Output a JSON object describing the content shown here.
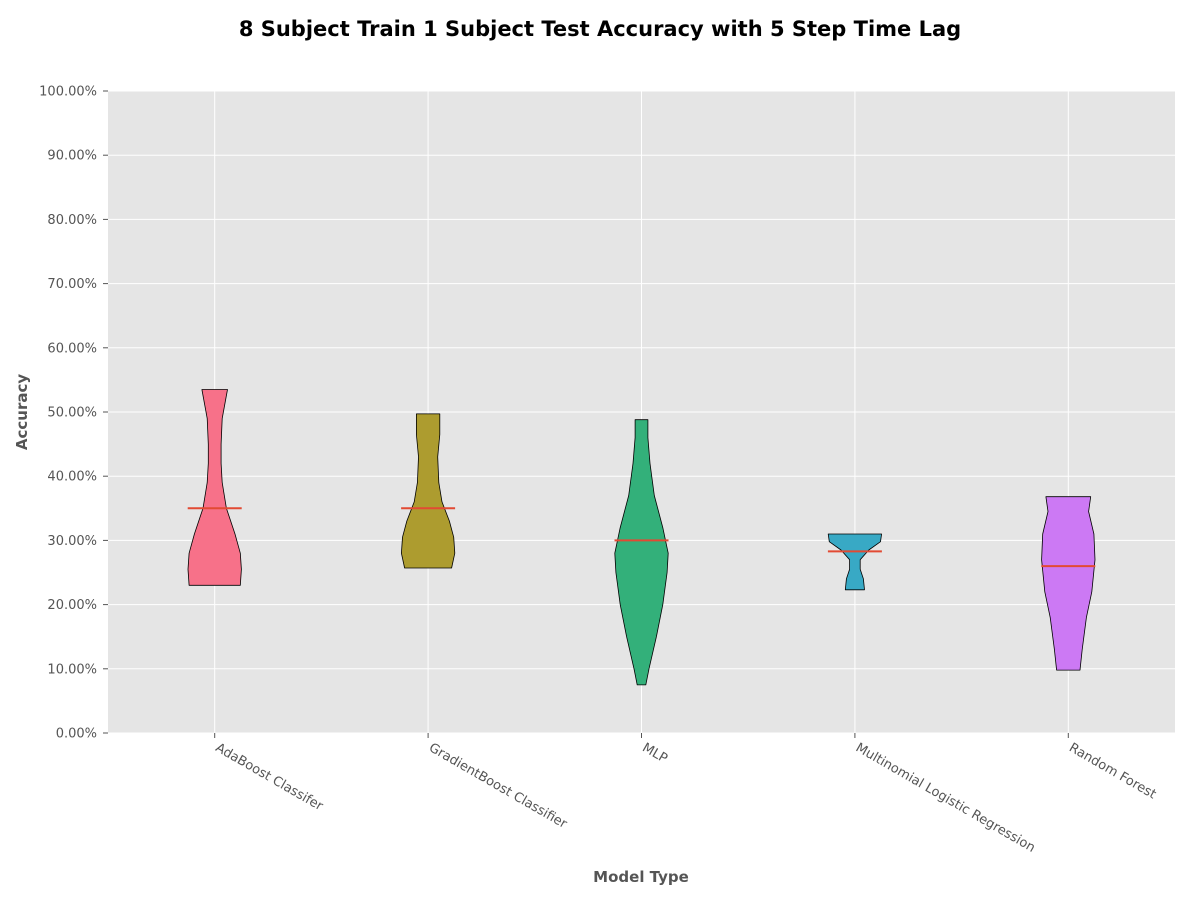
{
  "chart_data": {
    "type": "violin",
    "title": "8 Subject Train 1 Subject Test Accuracy with 5 Step Time Lag",
    "xlabel": "Model Type",
    "ylabel": "Accuracy",
    "ylim": [
      0,
      1
    ],
    "y_ticks": [
      0,
      0.1,
      0.2,
      0.3,
      0.4,
      0.5,
      0.6,
      0.7,
      0.8,
      0.9,
      1.0
    ],
    "y_tick_labels": [
      "0.00%",
      "10.00%",
      "20.00%",
      "30.00%",
      "40.00%",
      "50.00%",
      "60.00%",
      "70.00%",
      "80.00%",
      "90.00%",
      "100.00%"
    ],
    "grid": true,
    "median_color": "#e24a33",
    "categories": [
      "AdaBoost Classifer",
      "GradientBoost Classifier",
      "MLP",
      "Multinomial Logistic Regression",
      "Random Forest"
    ],
    "series": [
      {
        "category": "AdaBoost Classifer",
        "color": "#f77189",
        "min": 0.23,
        "max": 0.535,
        "median": 0.35,
        "profile": [
          [
            0.23,
            0.24
          ],
          [
            0.255,
            0.25
          ],
          [
            0.28,
            0.24
          ],
          [
            0.31,
            0.19
          ],
          [
            0.35,
            0.11
          ],
          [
            0.39,
            0.07
          ],
          [
            0.42,
            0.06
          ],
          [
            0.45,
            0.06
          ],
          [
            0.49,
            0.07
          ],
          [
            0.535,
            0.12
          ]
        ]
      },
      {
        "category": "GradientBoost Classifier",
        "color": "#ad9c2f",
        "min": 0.257,
        "max": 0.497,
        "median": 0.35,
        "profile": [
          [
            0.257,
            0.22
          ],
          [
            0.28,
            0.25
          ],
          [
            0.305,
            0.24
          ],
          [
            0.33,
            0.2
          ],
          [
            0.36,
            0.13
          ],
          [
            0.39,
            0.1
          ],
          [
            0.43,
            0.09
          ],
          [
            0.465,
            0.11
          ],
          [
            0.497,
            0.11
          ]
        ]
      },
      {
        "category": "MLP",
        "color": "#33b07a",
        "min": 0.075,
        "max": 0.488,
        "median": 0.3,
        "profile": [
          [
            0.075,
            0.04
          ],
          [
            0.1,
            0.07
          ],
          [
            0.15,
            0.14
          ],
          [
            0.2,
            0.2
          ],
          [
            0.25,
            0.24
          ],
          [
            0.28,
            0.25
          ],
          [
            0.32,
            0.2
          ],
          [
            0.37,
            0.12
          ],
          [
            0.42,
            0.08
          ],
          [
            0.46,
            0.06
          ],
          [
            0.488,
            0.06
          ]
        ]
      },
      {
        "category": "Multinomial Logistic Regression",
        "color": "#38a9c5",
        "min": 0.223,
        "max": 0.31,
        "median": 0.283,
        "profile": [
          [
            0.223,
            0.09
          ],
          [
            0.24,
            0.08
          ],
          [
            0.255,
            0.05
          ],
          [
            0.27,
            0.05
          ],
          [
            0.285,
            0.13
          ],
          [
            0.298,
            0.24
          ],
          [
            0.31,
            0.25
          ]
        ]
      },
      {
        "category": "Random Forest",
        "color": "#cc79f4",
        "min": 0.098,
        "max": 0.368,
        "median": 0.26,
        "profile": [
          [
            0.098,
            0.11
          ],
          [
            0.13,
            0.13
          ],
          [
            0.18,
            0.17
          ],
          [
            0.22,
            0.22
          ],
          [
            0.27,
            0.25
          ],
          [
            0.31,
            0.24
          ],
          [
            0.345,
            0.19
          ],
          [
            0.368,
            0.21
          ]
        ]
      }
    ]
  }
}
